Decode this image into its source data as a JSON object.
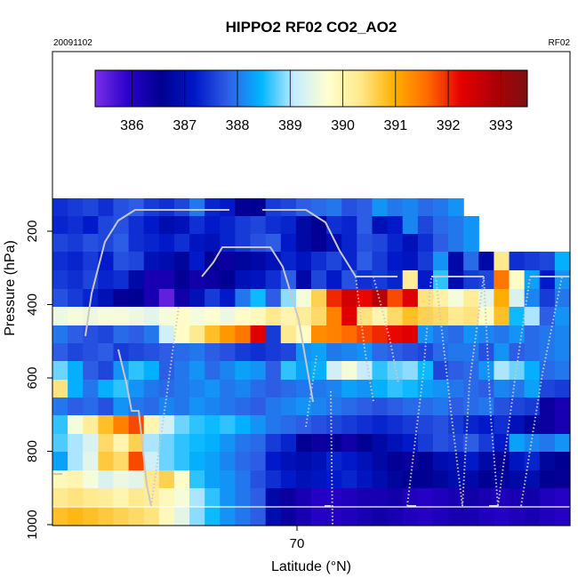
{
  "chart_data": {
    "type": "heatmap",
    "title": "HIPPO2 RF02 CO2_AO2",
    "date_label": "20091102",
    "flight_label": "RF02",
    "xlabel": "Latitude (°N)",
    "ylabel": "Pressure (hPa)",
    "x_ticks": [
      70
    ],
    "y_ticks": [
      200,
      400,
      600,
      800,
      1000
    ],
    "ylim": [
      1000,
      50
    ],
    "y_reversed": true,
    "colorbar": {
      "position": "top-inset",
      "range": [
        385.3,
        393.5
      ],
      "ticks": [
        386,
        387,
        388,
        389,
        390,
        391,
        392,
        393
      ],
      "colors": [
        "#7a2fe6",
        "#2a00cc",
        "#00008f",
        "#0018c8",
        "#2f5fe6",
        "#00b6ff",
        "#c6ecff",
        "#ffffd0",
        "#ffe88a",
        "#ffb000",
        "#ff6a00",
        "#e60000",
        "#b00008",
        "#7a1010"
      ]
    },
    "grid": false,
    "flight_track_color": "#c8c8c8"
  }
}
